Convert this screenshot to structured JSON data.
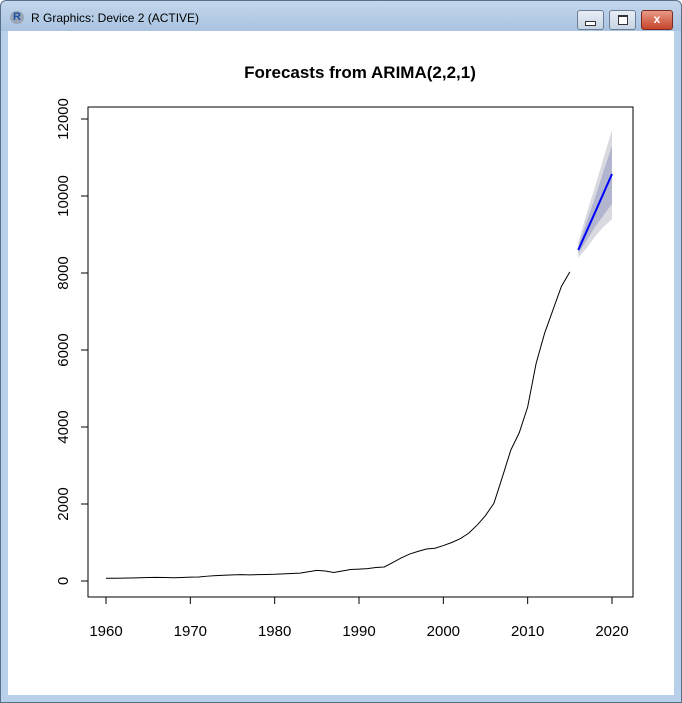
{
  "window": {
    "title": "R Graphics: Device 2 (ACTIVE)",
    "close_glyph": "x"
  },
  "chart_data": {
    "type": "line",
    "title": "Forecasts from ARIMA(2,2,1)",
    "xlabel": "",
    "ylabel": "",
    "xlim": [
      1958,
      2022
    ],
    "ylim": [
      -400,
      12500
    ],
    "xticks": [
      1960,
      1970,
      1980,
      1990,
      2000,
      2010,
      2020
    ],
    "yticks": [
      0,
      2000,
      4000,
      6000,
      8000,
      10000,
      12000
    ],
    "history": {
      "start": 1960,
      "values": [
        70,
        72,
        75,
        78,
        85,
        92,
        95,
        90,
        85,
        92,
        100,
        105,
        125,
        140,
        150,
        160,
        165,
        160,
        165,
        170,
        175,
        185,
        195,
        205,
        240,
        275,
        260,
        220,
        260,
        300,
        310,
        320,
        350,
        365,
        480,
        600,
        700,
        770,
        830,
        850,
        920,
        1000,
        1100,
        1240,
        1450,
        1700,
        2020,
        2700,
        3400,
        3850,
        4520,
        5650,
        6430,
        7040,
        7650,
        8030
      ],
      "color": "#000000"
    },
    "forecast": {
      "x": [
        2016,
        2017,
        2018,
        2019,
        2020
      ],
      "mean": [
        8597,
        9090,
        9580,
        10075,
        10571
      ],
      "lower80": [
        8500,
        8850,
        9200,
        9500,
        9800
      ],
      "upper80": [
        8700,
        9330,
        9960,
        10650,
        11300
      ],
      "lower95": [
        8400,
        8650,
        8950,
        9200,
        9395
      ],
      "upper95": [
        8800,
        9550,
        10250,
        10990,
        11714
      ],
      "color": "#0000ff",
      "band80_color": "#b1b5ce",
      "band95_color": "#d9d9e0"
    }
  }
}
